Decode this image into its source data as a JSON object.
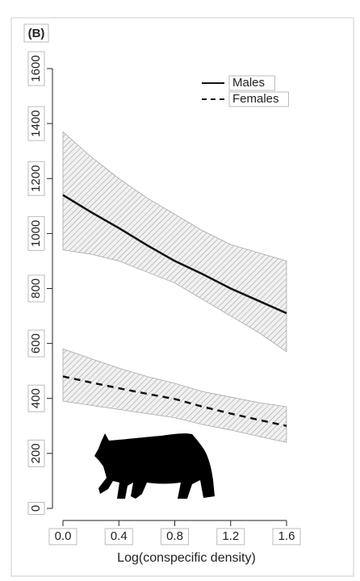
{
  "chart_data": {
    "type": "line",
    "panel_label": "(B)",
    "x_label": "Log(conspecific density)",
    "x": [
      0,
      0.2,
      0.4,
      0.6,
      0.8,
      1.0,
      1.2,
      1.4,
      1.6
    ],
    "xlim": [
      0,
      1.6
    ],
    "xticks": [
      {
        "value": 0,
        "label": "0.0"
      },
      0.4,
      0.8,
      1.2,
      1.6
    ],
    "ylim": [
      0,
      1600
    ],
    "yticks": [
      0,
      200,
      400,
      600,
      800,
      1000,
      1200,
      1400,
      1600
    ],
    "legend": "top-right",
    "series": [
      {
        "name": "Males",
        "color": "#111111",
        "dash": "solid",
        "values": [
          1140,
          1078,
          1020,
          958,
          900,
          852,
          800,
          755,
          710
        ],
        "upper": [
          1370,
          1280,
          1200,
          1130,
          1070,
          1010,
          960,
          930,
          900
        ],
        "lower": [
          940,
          925,
          900,
          860,
          820,
          760,
          700,
          640,
          570
        ]
      },
      {
        "name": "Females",
        "color": "#111111",
        "dash": "dashed",
        "values": [
          480,
          458,
          437,
          417,
          398,
          370,
          345,
          322,
          300
        ],
        "upper": [
          580,
          545,
          510,
          480,
          455,
          425,
          405,
          385,
          370
        ],
        "lower": [
          390,
          375,
          360,
          345,
          330,
          305,
          285,
          262,
          240
        ]
      }
    ]
  }
}
